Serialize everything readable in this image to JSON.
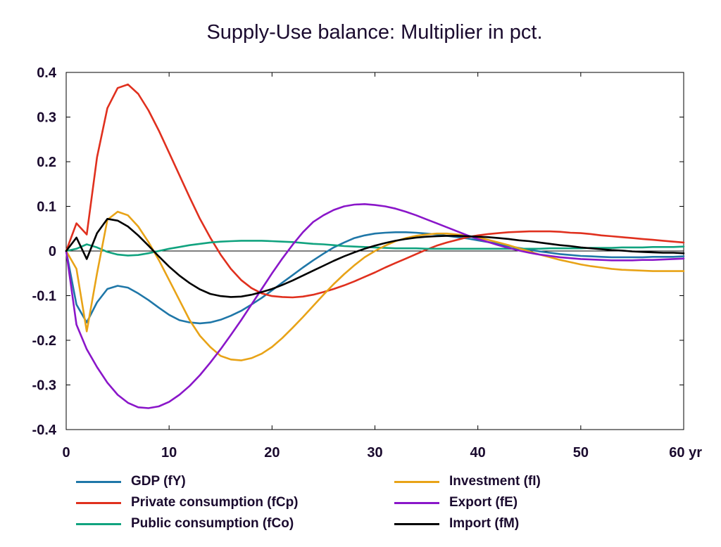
{
  "chart_data": {
    "type": "line",
    "title": "Supply-Use balance: Multiplier in pct.",
    "xlabel": "",
    "ylabel": "",
    "x_unit_label": "yr",
    "xlim": [
      0,
      60
    ],
    "ylim": [
      -0.4,
      0.4
    ],
    "x_ticks": [
      0,
      10,
      20,
      30,
      40,
      50,
      60
    ],
    "x_tick_labels": [
      "0",
      "10",
      "20",
      "30",
      "40",
      "50",
      "60 yr"
    ],
    "y_ticks": [
      0.4,
      0.3,
      0.2,
      0.1,
      0,
      -0.1,
      -0.2,
      -0.3,
      -0.4
    ],
    "y_tick_labels": [
      "0.4",
      "0.3",
      "0.2",
      "0.1",
      "0",
      "-0.1",
      "-0.2",
      "-0.3",
      "-0.4"
    ],
    "grid": false,
    "zero_line": true,
    "legend_position": "bottom",
    "x": [
      0,
      1,
      2,
      3,
      4,
      5,
      6,
      7,
      8,
      9,
      10,
      11,
      12,
      13,
      14,
      15,
      16,
      17,
      18,
      19,
      20,
      21,
      22,
      23,
      24,
      25,
      26,
      27,
      28,
      29,
      30,
      31,
      32,
      33,
      34,
      35,
      36,
      37,
      38,
      39,
      40,
      41,
      42,
      43,
      44,
      45,
      46,
      47,
      48,
      49,
      50,
      51,
      52,
      53,
      54,
      55,
      56,
      57,
      58,
      59,
      60
    ],
    "series": [
      {
        "name": "GDP (fY)",
        "color": "#1f77a8",
        "values": [
          0,
          -0.12,
          -0.16,
          -0.115,
          -0.085,
          -0.078,
          -0.082,
          -0.095,
          -0.11,
          -0.127,
          -0.143,
          -0.155,
          -0.16,
          -0.162,
          -0.16,
          -0.154,
          -0.145,
          -0.134,
          -0.12,
          -0.105,
          -0.088,
          -0.071,
          -0.054,
          -0.037,
          -0.021,
          -0.006,
          0.008,
          0.019,
          0.029,
          0.035,
          0.039,
          0.041,
          0.042,
          0.042,
          0.041,
          0.039,
          0.037,
          0.034,
          0.031,
          0.028,
          0.024,
          0.02,
          0.016,
          0.011,
          0.007,
          0.003,
          -0.001,
          -0.004,
          -0.007,
          -0.009,
          -0.011,
          -0.012,
          -0.013,
          -0.014,
          -0.014,
          -0.014,
          -0.014,
          -0.013,
          -0.013,
          -0.013,
          -0.012
        ]
      },
      {
        "name": "Private consumption (fCp)",
        "color": "#e0301e",
        "values": [
          0,
          0.062,
          0.037,
          0.21,
          0.32,
          0.365,
          0.373,
          0.352,
          0.315,
          0.27,
          0.22,
          0.17,
          0.12,
          0.072,
          0.03,
          -0.008,
          -0.04,
          -0.065,
          -0.083,
          -0.095,
          -0.101,
          -0.103,
          -0.104,
          -0.102,
          -0.098,
          -0.092,
          -0.085,
          -0.077,
          -0.068,
          -0.058,
          -0.048,
          -0.037,
          -0.027,
          -0.017,
          -0.007,
          0.003,
          0.012,
          0.019,
          0.025,
          0.031,
          0.035,
          0.038,
          0.04,
          0.042,
          0.043,
          0.044,
          0.044,
          0.044,
          0.043,
          0.041,
          0.04,
          0.038,
          0.035,
          0.033,
          0.031,
          0.029,
          0.027,
          0.025,
          0.023,
          0.021,
          0.019
        ]
      },
      {
        "name": "Public consumption (fCo)",
        "color": "#11a37f",
        "values": [
          0,
          0.005,
          0.015,
          0.008,
          -0.002,
          -0.008,
          -0.01,
          -0.009,
          -0.005,
          0,
          0.005,
          0.009,
          0.013,
          0.016,
          0.019,
          0.021,
          0.022,
          0.023,
          0.023,
          0.023,
          0.022,
          0.021,
          0.02,
          0.018,
          0.016,
          0.015,
          0.013,
          0.011,
          0.01,
          0.009,
          0.008,
          0.007,
          0.006,
          0.006,
          0.006,
          0.005,
          0.005,
          0.005,
          0.005,
          0.005,
          0.005,
          0.005,
          0.005,
          0.005,
          0.005,
          0.005,
          0.005,
          0.006,
          0.006,
          0.006,
          0.006,
          0.007,
          0.007,
          0.007,
          0.008,
          0.008,
          0.008,
          0.009,
          0.009,
          0.009,
          0.01
        ]
      },
      {
        "name": "Investment (fI)",
        "color": "#e8a317",
        "values": [
          0,
          -0.04,
          -0.18,
          -0.05,
          0.07,
          0.088,
          0.08,
          0.055,
          0.02,
          -0.02,
          -0.065,
          -0.11,
          -0.155,
          -0.19,
          -0.215,
          -0.235,
          -0.243,
          -0.245,
          -0.24,
          -0.23,
          -0.215,
          -0.195,
          -0.172,
          -0.148,
          -0.123,
          -0.098,
          -0.074,
          -0.052,
          -0.032,
          -0.014,
          0,
          0.012,
          0.022,
          0.029,
          0.034,
          0.037,
          0.039,
          0.039,
          0.037,
          0.034,
          0.03,
          0.025,
          0.019,
          0.013,
          0.006,
          -0.001,
          -0.008,
          -0.014,
          -0.02,
          -0.025,
          -0.03,
          -0.034,
          -0.037,
          -0.04,
          -0.042,
          -0.043,
          -0.044,
          -0.045,
          -0.045,
          -0.045,
          -0.045
        ]
      },
      {
        "name": "Export (fE)",
        "color": "#8a16c9",
        "values": [
          0,
          -0.165,
          -0.22,
          -0.26,
          -0.295,
          -0.322,
          -0.34,
          -0.35,
          -0.352,
          -0.348,
          -0.338,
          -0.322,
          -0.302,
          -0.278,
          -0.25,
          -0.22,
          -0.188,
          -0.155,
          -0.12,
          -0.085,
          -0.05,
          -0.017,
          0.014,
          0.042,
          0.065,
          0.08,
          0.092,
          0.1,
          0.104,
          0.105,
          0.103,
          0.1,
          0.095,
          0.088,
          0.08,
          0.071,
          0.062,
          0.053,
          0.044,
          0.035,
          0.027,
          0.02,
          0.013,
          0.007,
          0.001,
          -0.004,
          -0.008,
          -0.011,
          -0.014,
          -0.016,
          -0.018,
          -0.019,
          -0.02,
          -0.021,
          -0.021,
          -0.021,
          -0.02,
          -0.02,
          -0.019,
          -0.018,
          -0.017
        ]
      },
      {
        "name": "Import (fM)",
        "color": "#000000",
        "values": [
          0,
          0.03,
          -0.018,
          0.04,
          0.072,
          0.068,
          0.055,
          0.035,
          0.012,
          -0.012,
          -0.035,
          -0.055,
          -0.072,
          -0.086,
          -0.096,
          -0.101,
          -0.103,
          -0.102,
          -0.098,
          -0.092,
          -0.085,
          -0.076,
          -0.066,
          -0.055,
          -0.044,
          -0.033,
          -0.022,
          -0.012,
          -0.003,
          0.005,
          0.012,
          0.018,
          0.023,
          0.027,
          0.03,
          0.032,
          0.033,
          0.034,
          0.034,
          0.033,
          0.032,
          0.031,
          0.029,
          0.027,
          0.024,
          0.022,
          0.019,
          0.016,
          0.013,
          0.011,
          0.008,
          0.006,
          0.004,
          0.002,
          0.001,
          -0.001,
          -0.002,
          -0.003,
          -0.004,
          -0.004,
          -0.005
        ]
      }
    ]
  }
}
